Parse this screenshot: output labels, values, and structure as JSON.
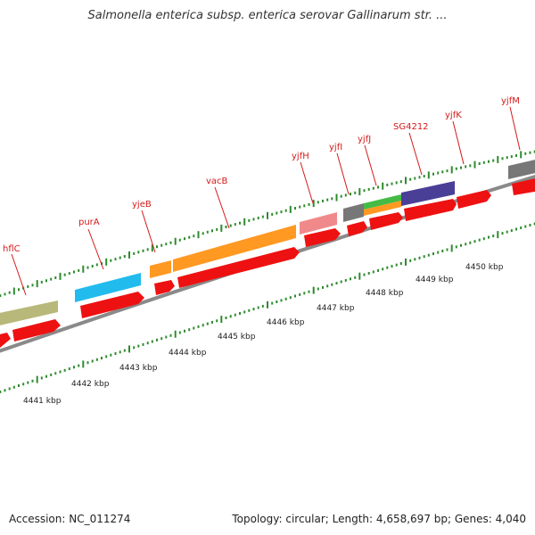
{
  "title": "Salmonella enterica subsp. enterica serovar Gallinarum str. ...",
  "footer": {
    "accession": "Accession: NC_011274",
    "info": "Topology: circular; Length: 4,658,697 bp; Genes: 4,040"
  },
  "colors": {
    "cds": "#ee1111",
    "label": "#d41a1a",
    "tick": "#2e8b2e",
    "backbone": "#8a8a8a"
  },
  "genes": [
    {
      "label": "hflC",
      "color": "#b8b87a"
    },
    {
      "label": "purA",
      "color": "#22bbee"
    },
    {
      "label": "yjeB",
      "color": "#ff9922"
    },
    {
      "label": "vacB",
      "color": "#ff9922"
    },
    {
      "label": "yjfH",
      "color": "#f08a8a"
    },
    {
      "label": "yjfI",
      "color": "#777777"
    },
    {
      "label": "yjfJ",
      "color": "#44bb44"
    },
    {
      "label": "SG4212",
      "color": "#4a3f96"
    },
    {
      "label": "yjfK",
      "color": ""
    },
    {
      "label": "yjfM",
      "color": "#777777"
    }
  ],
  "scale": [
    "4441 kbp",
    "4442 kbp",
    "4443 kbp",
    "4444 kbp",
    "4445 kbp",
    "4446 kbp",
    "4447 kbp",
    "4448 kbp",
    "4449 kbp",
    "4450 kbp"
  ]
}
